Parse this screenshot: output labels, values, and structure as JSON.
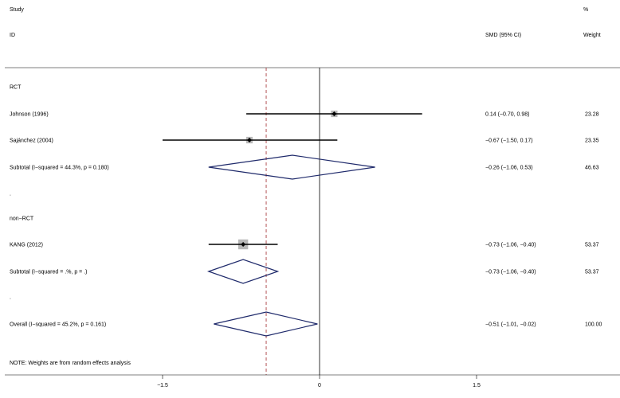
{
  "header": {
    "study_label": "Study",
    "id_label": "ID",
    "effect_label": "SMD (95% CI)",
    "percent_label": "%",
    "weight_label": "Weight"
  },
  "note": "NOTE: Weights are from random effects analysis",
  "chart_data": {
    "type": "forest",
    "title": "",
    "xlabel": "",
    "xlim": [
      -2.4,
      4.6
    ],
    "x_ticks": [
      -1.5,
      0,
      1.5
    ],
    "x_tick_labels": [
      "−1.5",
      "0",
      "1.5"
    ],
    "null_line": 0,
    "overall_line": -0.51,
    "rows": [
      {
        "kind": "group",
        "label": "RCT"
      },
      {
        "kind": "study",
        "label": "Johnson (1996)",
        "est": 0.14,
        "lo": -0.7,
        "hi": 0.98,
        "ci_text": "0.14 (−0.70, 0.98)",
        "weight": "23.28"
      },
      {
        "kind": "study",
        "label": "Saјánchez (2004)",
        "est": -0.67,
        "lo": -1.5,
        "hi": 0.17,
        "ci_text": "−0.67 (−1.50, 0.17)",
        "weight": "23.35"
      },
      {
        "kind": "subtotal",
        "label": "Subtotal  (I−squared = 44.3%, p = 0.180)",
        "est": -0.26,
        "lo": -1.06,
        "hi": 0.53,
        "ci_text": "−0.26 (−1.06, 0.53)",
        "weight": "46.63"
      },
      {
        "kind": "spacer",
        "label": "."
      },
      {
        "kind": "group",
        "label": "non−RCT"
      },
      {
        "kind": "study",
        "label": "KANG (2012)",
        "est": -0.73,
        "lo": -1.06,
        "hi": -0.4,
        "ci_text": "−0.73 (−1.06, −0.40)",
        "weight": "53.37"
      },
      {
        "kind": "subtotal",
        "label": "Subtotal  (I−squared = .%, p = .)",
        "est": -0.73,
        "lo": -1.06,
        "hi": -0.4,
        "ci_text": "−0.73 (−1.06, −0.40)",
        "weight": "53.37"
      },
      {
        "kind": "spacer",
        "label": "."
      },
      {
        "kind": "overall",
        "label": "Overall  (I−squared = 45.2%, p = 0.161)",
        "est": -0.51,
        "lo": -1.01,
        "hi": -0.02,
        "ci_text": "−0.51 (−1.01, −0.02)",
        "weight": "100.00"
      }
    ],
    "colors": {
      "diamond": "#1f2a6b",
      "overall_line": "#a0282a",
      "weight_box": "#b8b8b8",
      "axis": "#000000"
    }
  }
}
